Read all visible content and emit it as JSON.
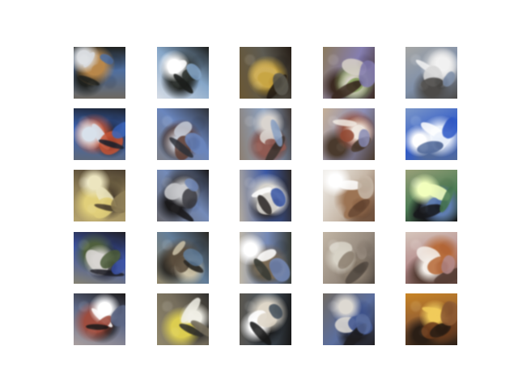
{
  "grid": {
    "rows": 5,
    "columns": 5
  },
  "samples": [
    {
      "base": "#6d6861",
      "accent": "#b8874a",
      "dark": "#1f211e",
      "light": "#d9dce0",
      "blue": "#4f6fa0"
    },
    {
      "base": "#d8dee7",
      "accent": "#303532",
      "dark": "#1b1d1b",
      "light": "#ffffff",
      "blue": "#86a6c8"
    },
    {
      "base": "#6a5734",
      "accent": "#c8a542",
      "dark": "#241c15",
      "light": "#d0b05a",
      "blue": "#5d5b52"
    },
    {
      "base": "#8b7a5d",
      "accent": "#88a15e",
      "dark": "#3b2a21",
      "light": "#d7d0c8",
      "blue": "#857eb0"
    },
    {
      "base": "#a6a7a6",
      "accent": "#d7d7d7",
      "dark": "#4c4a48",
      "light": "#f2f2f2",
      "blue": "#7f8fa8"
    },
    {
      "base": "#5d6779",
      "accent": "#c25335",
      "dark": "#1d2431",
      "light": "#d8e1eb",
      "blue": "#3d66b8"
    },
    {
      "base": "#7e8089",
      "accent": "#5f3f35",
      "dark": "#2e3138",
      "light": "#c4cad5",
      "blue": "#6a86bd"
    },
    {
      "base": "#8c7f72",
      "accent": "#905a52",
      "dark": "#3d3531",
      "light": "#d9d4cf",
      "blue": "#8ca2c3"
    },
    {
      "base": "#c3ae96",
      "accent": "#934a34",
      "dark": "#4a3a2d",
      "light": "#efe7df",
      "blue": "#8d8fb6"
    },
    {
      "base": "#7d98c8",
      "accent": "#ebf1fb",
      "dark": "#526a9a",
      "light": "#ffffff",
      "blue": "#315bc7"
    },
    {
      "base": "#b5a36e",
      "accent": "#e1cf7a",
      "dark": "#4c4030",
      "light": "#ece5bf",
      "blue": "#8f7f58"
    },
    {
      "base": "#69686e",
      "accent": "#3e3e44",
      "dark": "#1a191b",
      "light": "#c8c9cc",
      "blue": "#748bb8"
    },
    {
      "base": "#b1aaa0",
      "accent": "#d5d2cc",
      "dark": "#2d2928",
      "light": "#ffffff",
      "blue": "#3b58a4"
    },
    {
      "base": "#f2f0ec",
      "accent": "#9c7454",
      "dark": "#6a4a35",
      "light": "#ffffff",
      "blue": "#c6b7a7"
    },
    {
      "base": "#98a078",
      "accent": "#5f7db0",
      "dark": "#17181b",
      "light": "#f2ffbd",
      "blue": "#4d7c55"
    },
    {
      "base": "#858272",
      "accent": "#4f5f3d",
      "dark": "#1f1f27",
      "light": "#d8d5d2",
      "blue": "#3e55a7"
    },
    {
      "base": "#8f8468",
      "accent": "#5a4d3d",
      "dark": "#2a2824",
      "light": "#c9c0a7",
      "blue": "#627d99"
    },
    {
      "base": "#bcb5a7",
      "accent": "#7a6a55",
      "dark": "#373a34",
      "light": "#ffffff",
      "blue": "#7488b5"
    },
    {
      "base": "#c2b6a6",
      "accent": "#8d8071",
      "dark": "#544b43",
      "light": "#d8d3c7",
      "blue": "#978b7f"
    },
    {
      "base": "#d6c6bc",
      "accent": "#b86d3c",
      "dark": "#553d34",
      "light": "#f4eee8",
      "blue": "#b48b8b"
    },
    {
      "base": "#aaa0a0",
      "accent": "#9e4c3e",
      "dark": "#1d1b1b",
      "light": "#ffffff",
      "blue": "#5e6886"
    },
    {
      "base": "#90876c",
      "accent": "#dccd50",
      "dark": "#302f2d",
      "light": "#f0efe6",
      "blue": "#756d5c"
    },
    {
      "base": "#5a564f",
      "accent": "#ded6c8",
      "dark": "#171717",
      "light": "#ffffff",
      "blue": "#45515d"
    },
    {
      "base": "#706a63",
      "accent": "#435892",
      "dark": "#1f1d20",
      "light": "#ddd9d2",
      "blue": "#5b6e9e"
    },
    {
      "base": "#c98526",
      "accent": "#6b3b1c",
      "dark": "#2a1e15",
      "light": "#f1cb5a",
      "blue": "#8f5c34"
    }
  ]
}
